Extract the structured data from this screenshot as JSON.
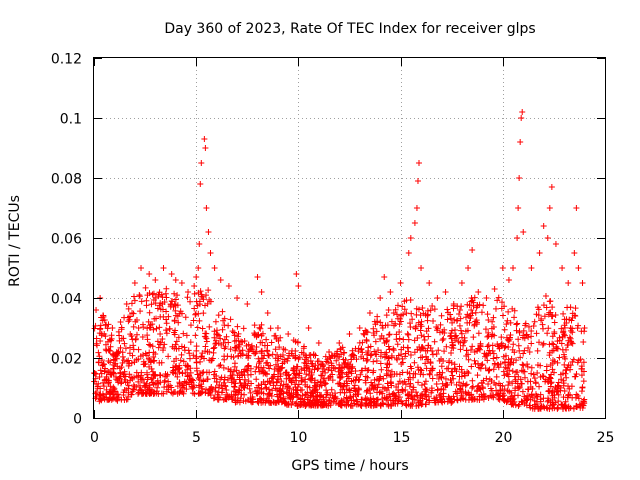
{
  "chart_data": {
    "type": "scatter",
    "title": "Day 360 of 2023, Rate Of TEC Index for receiver glps",
    "xlabel": "GPS time / hours",
    "ylabel": "ROTI / TECUs",
    "xlim": [
      0,
      25
    ],
    "ylim": [
      0,
      0.12
    ],
    "xticks": [
      "0",
      "5",
      "10",
      "15",
      "20",
      "25"
    ],
    "xtick_values": [
      0,
      5,
      10,
      15,
      20,
      25
    ],
    "yticks": [
      "0",
      "0.02",
      "0.04",
      "0.06",
      "0.08",
      "0.1",
      "0.12"
    ],
    "ytick_values": [
      0,
      0.02,
      0.04,
      0.06,
      0.08,
      0.1,
      0.12
    ],
    "grid": true,
    "marker": "+",
    "color": "#ff0000",
    "series": [
      {
        "name": "ROTI",
        "points": [
          [
            0.1,
            0.036
          ],
          [
            0.3,
            0.04
          ],
          [
            0.5,
            0.028
          ],
          [
            0.9,
            0.03
          ],
          [
            1.3,
            0.032
          ],
          [
            1.6,
            0.038
          ],
          [
            2.0,
            0.045
          ],
          [
            2.3,
            0.05
          ],
          [
            2.7,
            0.048
          ],
          [
            3.0,
            0.046
          ],
          [
            3.4,
            0.05
          ],
          [
            3.8,
            0.048
          ],
          [
            4.0,
            0.046
          ],
          [
            4.3,
            0.045
          ],
          [
            4.6,
            0.042
          ],
          [
            4.9,
            0.044
          ],
          [
            5.0,
            0.047
          ],
          [
            5.1,
            0.05
          ],
          [
            5.15,
            0.058
          ],
          [
            5.2,
            0.078
          ],
          [
            5.25,
            0.085
          ],
          [
            5.4,
            0.093
          ],
          [
            5.45,
            0.09
          ],
          [
            5.5,
            0.07
          ],
          [
            5.6,
            0.062
          ],
          [
            5.7,
            0.055
          ],
          [
            5.9,
            0.05
          ],
          [
            6.2,
            0.046
          ],
          [
            6.6,
            0.044
          ],
          [
            7.0,
            0.04
          ],
          [
            7.5,
            0.038
          ],
          [
            8.0,
            0.047
          ],
          [
            8.2,
            0.042
          ],
          [
            8.5,
            0.035
          ],
          [
            9.0,
            0.03
          ],
          [
            9.5,
            0.028
          ],
          [
            9.9,
            0.048
          ],
          [
            10.0,
            0.044
          ],
          [
            10.5,
            0.03
          ],
          [
            11.0,
            0.025
          ],
          [
            11.5,
            0.022
          ],
          [
            12.0,
            0.025
          ],
          [
            12.5,
            0.028
          ],
          [
            13.0,
            0.03
          ],
          [
            13.5,
            0.035
          ],
          [
            14.0,
            0.04
          ],
          [
            14.2,
            0.047
          ],
          [
            14.5,
            0.042
          ],
          [
            15.0,
            0.045
          ],
          [
            15.4,
            0.055
          ],
          [
            15.5,
            0.06
          ],
          [
            15.7,
            0.065
          ],
          [
            15.8,
            0.07
          ],
          [
            15.85,
            0.079
          ],
          [
            15.9,
            0.085
          ],
          [
            16.0,
            0.05
          ],
          [
            16.4,
            0.045
          ],
          [
            16.8,
            0.04
          ],
          [
            17.2,
            0.042
          ],
          [
            17.6,
            0.038
          ],
          [
            18.0,
            0.045
          ],
          [
            18.3,
            0.05
          ],
          [
            18.5,
            0.056
          ],
          [
            18.8,
            0.042
          ],
          [
            19.2,
            0.04
          ],
          [
            19.6,
            0.043
          ],
          [
            20.0,
            0.05
          ],
          [
            20.3,
            0.046
          ],
          [
            20.5,
            0.05
          ],
          [
            20.7,
            0.06
          ],
          [
            20.75,
            0.07
          ],
          [
            20.8,
            0.08
          ],
          [
            20.85,
            0.092
          ],
          [
            20.9,
            0.1
          ],
          [
            20.95,
            0.102
          ],
          [
            21.0,
            0.062
          ],
          [
            21.4,
            0.05
          ],
          [
            21.8,
            0.055
          ],
          [
            22.0,
            0.064
          ],
          [
            22.2,
            0.06
          ],
          [
            22.3,
            0.07
          ],
          [
            22.4,
            0.077
          ],
          [
            22.6,
            0.058
          ],
          [
            22.9,
            0.05
          ],
          [
            23.2,
            0.045
          ],
          [
            23.5,
            0.055
          ],
          [
            23.6,
            0.07
          ],
          [
            23.7,
            0.05
          ],
          [
            23.9,
            0.045
          ],
          [
            24.0,
            0.03
          ]
        ]
      }
    ],
    "envelope": {
      "hours": [
        0,
        0.5,
        1,
        1.5,
        2,
        2.5,
        3,
        3.5,
        4,
        4.5,
        5,
        5.5,
        6,
        6.5,
        7,
        7.5,
        8,
        8.5,
        9,
        9.5,
        10,
        10.5,
        11,
        11.5,
        12,
        12.5,
        13,
        13.5,
        14,
        14.5,
        15,
        15.5,
        16,
        16.5,
        17,
        17.5,
        18,
        18.5,
        19,
        19.5,
        20,
        20.5,
        21,
        21.5,
        22,
        22.5,
        23,
        23.5,
        24
      ],
      "low": [
        0.005,
        0.006,
        0.006,
        0.005,
        0.008,
        0.008,
        0.008,
        0.008,
        0.008,
        0.008,
        0.008,
        0.008,
        0.006,
        0.006,
        0.005,
        0.005,
        0.005,
        0.005,
        0.005,
        0.004,
        0.004,
        0.004,
        0.004,
        0.004,
        0.004,
        0.004,
        0.004,
        0.004,
        0.004,
        0.004,
        0.004,
        0.004,
        0.004,
        0.005,
        0.005,
        0.005,
        0.006,
        0.006,
        0.006,
        0.006,
        0.006,
        0.004,
        0.004,
        0.003,
        0.003,
        0.003,
        0.003,
        0.003,
        0.003
      ],
      "high": [
        0.03,
        0.034,
        0.025,
        0.033,
        0.04,
        0.042,
        0.04,
        0.042,
        0.04,
        0.04,
        0.04,
        0.042,
        0.036,
        0.034,
        0.03,
        0.028,
        0.032,
        0.03,
        0.026,
        0.025,
        0.025,
        0.022,
        0.02,
        0.02,
        0.022,
        0.024,
        0.026,
        0.03,
        0.034,
        0.036,
        0.036,
        0.04,
        0.038,
        0.036,
        0.034,
        0.036,
        0.036,
        0.04,
        0.036,
        0.038,
        0.04,
        0.036,
        0.03,
        0.036,
        0.04,
        0.036,
        0.035,
        0.036,
        0.028
      ]
    }
  }
}
